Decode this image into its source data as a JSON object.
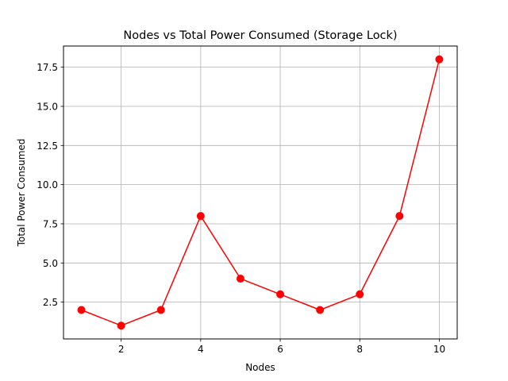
{
  "chart_data": {
    "type": "line",
    "title": "Nodes vs Total Power Consumed (Storage Lock)",
    "xlabel": "Nodes",
    "ylabel": "Total Power Consumed",
    "x": [
      1,
      2,
      3,
      4,
      5,
      6,
      7,
      8,
      9,
      10
    ],
    "series": [
      {
        "name": "",
        "values": [
          2,
          1,
          2,
          8,
          4,
          3,
          2,
          3,
          8,
          18
        ],
        "color": "#ff0000",
        "marker": "circle"
      }
    ],
    "xlim": [
      0.55,
      10.45
    ],
    "ylim": [
      0.15,
      18.85
    ],
    "xticks": [
      2,
      4,
      6,
      8,
      10
    ],
    "xtick_labels": [
      "2",
      "4",
      "6",
      "8",
      "10"
    ],
    "yticks": [
      2.5,
      5.0,
      7.5,
      10.0,
      12.5,
      15.0,
      17.5
    ],
    "ytick_labels": [
      "2.5",
      "5.0",
      "7.5",
      "10.0",
      "12.5",
      "15.0",
      "17.5"
    ],
    "grid": true
  }
}
